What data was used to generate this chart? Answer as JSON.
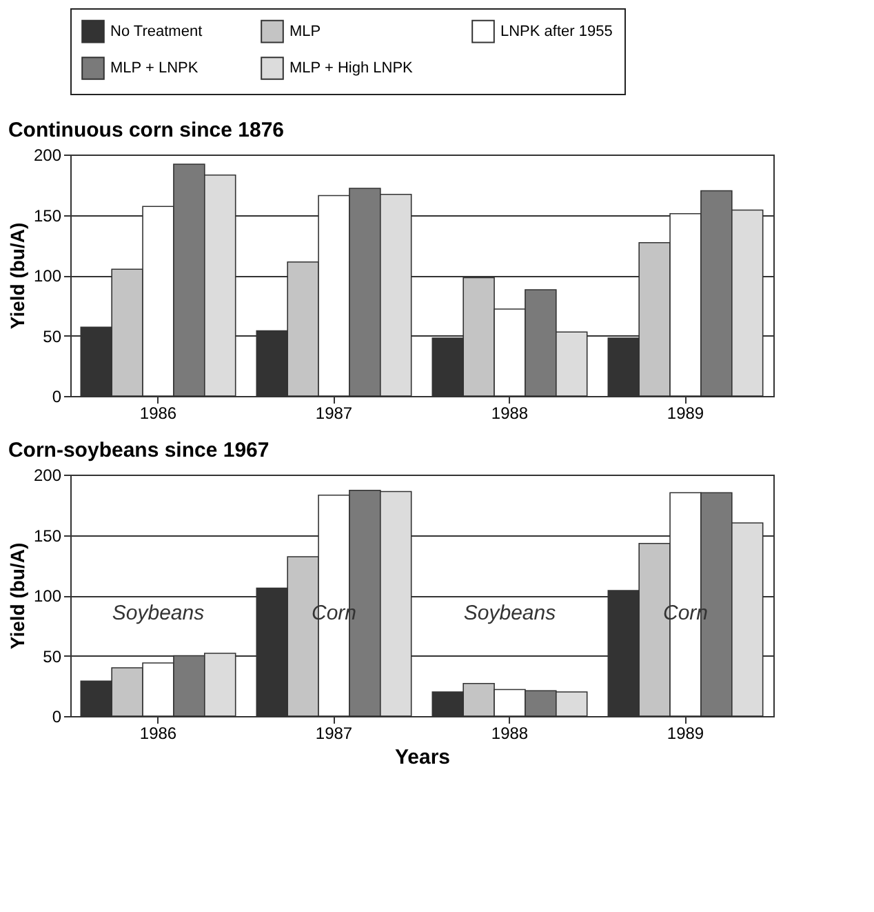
{
  "chart_data": [
    {
      "type": "bar",
      "title": "Continuous corn since 1876",
      "ylabel": "Yield (bu/A)",
      "categories": [
        "1986",
        "1987",
        "1988",
        "1989"
      ],
      "ylim": [
        0,
        200
      ],
      "yticks": [
        0,
        50,
        100,
        150,
        200
      ],
      "grid": "y",
      "legend": "top",
      "series": [
        {
          "name": "No Treatment",
          "color": "#333333",
          "values": [
            57,
            54,
            48,
            48
          ]
        },
        {
          "name": "MLP",
          "color": "#c4c4c4",
          "values": [
            105,
            111,
            98,
            127
          ]
        },
        {
          "name": "LNPK after 1955",
          "color": "#ffffff",
          "values": [
            157,
            166,
            72,
            151
          ]
        },
        {
          "name": "MLP + LNPK",
          "color": "#7a7a7a",
          "values": [
            192,
            172,
            88,
            170
          ]
        },
        {
          "name": "MLP + High LNPK",
          "color": "#dcdcdc",
          "values": [
            183,
            167,
            53,
            154
          ]
        }
      ]
    },
    {
      "type": "bar",
      "title": "Corn-soybeans since 1967",
      "xlabel": "Years",
      "ylabel": "Yield (bu/A)",
      "categories": [
        "1986",
        "1987",
        "1988",
        "1989"
      ],
      "ylim": [
        0,
        200
      ],
      "yticks": [
        0,
        50,
        100,
        150,
        200
      ],
      "grid": "y",
      "annotations": [
        "Soybeans",
        "Corn",
        "Soybeans",
        "Corn"
      ],
      "series": [
        {
          "name": "No Treatment",
          "color": "#333333",
          "values": [
            29,
            106,
            20,
            104
          ]
        },
        {
          "name": "MLP",
          "color": "#c4c4c4",
          "values": [
            40,
            132,
            27,
            143
          ]
        },
        {
          "name": "LNPK after 1955",
          "color": "#ffffff",
          "values": [
            44,
            183,
            22,
            185
          ]
        },
        {
          "name": "MLP + LNPK",
          "color": "#7a7a7a",
          "values": [
            50,
            187,
            21,
            185
          ]
        },
        {
          "name": "MLP + High LNPK",
          "color": "#dcdcdc",
          "values": [
            52,
            186,
            20,
            160
          ]
        }
      ]
    }
  ]
}
